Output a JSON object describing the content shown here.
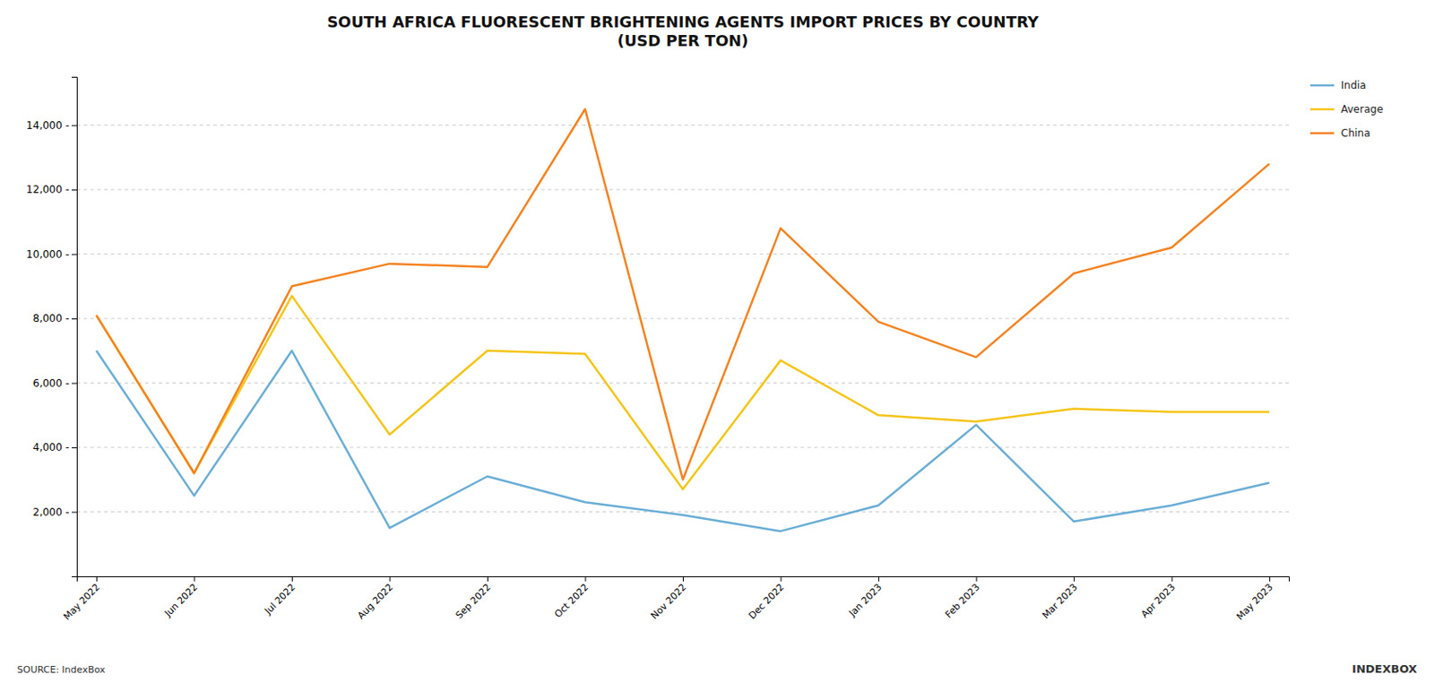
{
  "chart_data": {
    "type": "line",
    "title": "SOUTH AFRICA FLUORESCENT BRIGHTENING AGENTS IMPORT PRICES BY COUNTRY\n(USD PER TON)",
    "categories": [
      "May 2022",
      "Jun 2022",
      "Jul 2022",
      "Aug 2022",
      "Sep 2022",
      "Oct 2022",
      "Nov 2022",
      "Dec 2022",
      "Jan 2023",
      "Feb 2023",
      "Mar 2023",
      "Apr 2023",
      "May 2023"
    ],
    "series": [
      {
        "name": "India",
        "color": "#6aaed6",
        "values": [
          7000,
          2500,
          7000,
          1500,
          3100,
          2300,
          1900,
          1400,
          2200,
          4700,
          1700,
          2200,
          2900
        ]
      },
      {
        "name": "Average",
        "color": "#f5c518",
        "values": [
          8100,
          3200,
          8700,
          4400,
          7000,
          6900,
          2700,
          6700,
          5000,
          4800,
          5200,
          5100,
          5100
        ]
      },
      {
        "name": "China",
        "color": "#f5821f",
        "values": [
          8100,
          3200,
          9000,
          9700,
          9600,
          14500,
          3000,
          10800,
          7900,
          6800,
          9400,
          10200,
          12800
        ]
      }
    ],
    "ylim": [
      0,
      15500
    ],
    "yticks": [
      {
        "value": 2000,
        "label": "2,000 -"
      },
      {
        "value": 4000,
        "label": "4,000 -"
      },
      {
        "value": 6000,
        "label": "6,000 -"
      },
      {
        "value": 8000,
        "label": "8,000 -"
      },
      {
        "value": 10000,
        "label": "10,000 -"
      },
      {
        "value": 12000,
        "label": "12,000 -"
      },
      {
        "value": 14000,
        "label": "14,000 -"
      }
    ],
    "grid": true,
    "legend": "upper right",
    "annotations": [
      "SOURCE: IndexBox",
      "INDEXBOX"
    ]
  }
}
